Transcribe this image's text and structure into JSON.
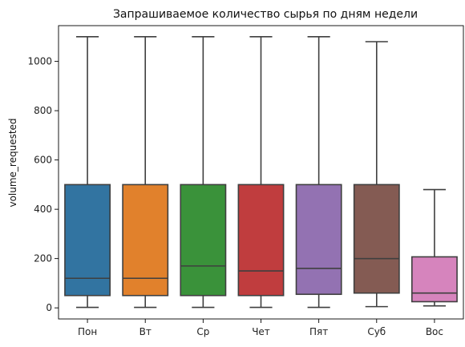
{
  "chart_data": {
    "type": "box",
    "title": "Запрашиваемое количество сырья по дням недели",
    "xlabel": "",
    "ylabel": "volume_requested",
    "ylim": [
      -45,
      1145
    ],
    "yticks": [
      0,
      200,
      400,
      600,
      800,
      1000
    ],
    "categories": [
      "Пон",
      "Вт",
      "Ср",
      "Чет",
      "Пят",
      "Суб",
      "Вос"
    ],
    "colors": [
      "#3274a1",
      "#e1812c",
      "#3a923a",
      "#c03d3e",
      "#9372b2",
      "#845b53",
      "#d684bd"
    ],
    "boxes": [
      {
        "category": "Пон",
        "min": 2,
        "q1": 50,
        "median": 120,
        "q3": 500,
        "max": 1100
      },
      {
        "category": "Вт",
        "min": 2,
        "q1": 50,
        "median": 120,
        "q3": 500,
        "max": 1100
      },
      {
        "category": "Ср",
        "min": 2,
        "q1": 50,
        "median": 170,
        "q3": 500,
        "max": 1100
      },
      {
        "category": "Чет",
        "min": 2,
        "q1": 50,
        "median": 150,
        "q3": 500,
        "max": 1100
      },
      {
        "category": "Пят",
        "min": 2,
        "q1": 55,
        "median": 160,
        "q3": 500,
        "max": 1100
      },
      {
        "category": "Суб",
        "min": 5,
        "q1": 60,
        "median": 200,
        "q3": 500,
        "max": 1080
      },
      {
        "category": "Вос",
        "min": 8,
        "q1": 25,
        "median": 60,
        "q3": 207,
        "max": 480
      }
    ]
  }
}
